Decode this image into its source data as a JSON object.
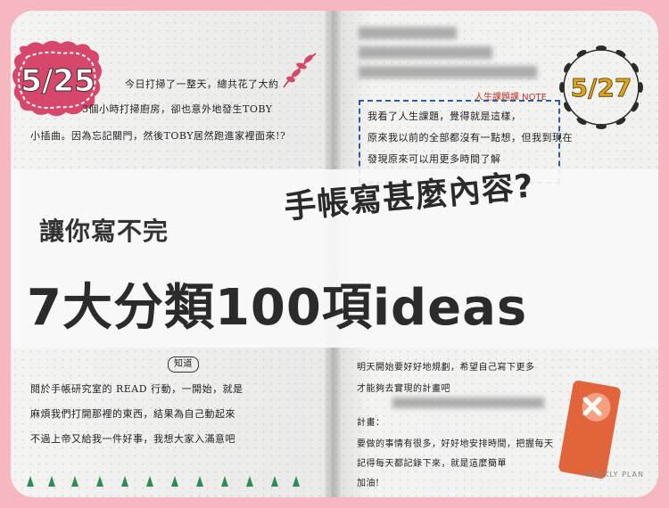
{
  "banner": {
    "line_top": "手帳寫甚麼內容?",
    "line_middle": "讓你寫不完",
    "line_bottom": "7大分類100項ideas"
  },
  "journal": {
    "date_left": "5/25",
    "date_right": "5/27",
    "note_label": "人生課題課 NOTE",
    "section_label": "知道",
    "bookmark_label": "WEEKLY PLAN",
    "left_lines": [
      "今日打掃了一整天，總共花了大約",
      "3個小時打掃廚房，卻也意外地發生TOBY",
      "小插曲。因為忘記關門，然後TOBY居然跑進家裡面來!?"
    ],
    "left_lower_lines": [
      "閱於手帳研究室的 READ 行動，一開始，就是",
      "麻煩我們打開那裡的東西，結果為自己動起來",
      "不過上帝又給我一件好事，我想大家入滿意吧"
    ],
    "right_lines": [
      "我看了人生課題，覺得就是這樣，",
      "原來我以前的全部都沒有一點想，但我到現在",
      "發現原來可以用更多時間了解"
    ],
    "right_lower_lines": [
      "明天開始要好好地規劃，希望自己寫下更多",
      "才能夠去實現的計畫吧",
      "計畫：",
      "要做的事情有很多，好好地安排時間，把握每天",
      "記得每天都記錄下來，就是這麼簡單",
      "加油!"
    ],
    "colors": {
      "frame": "#f6b7c0",
      "date_badge_left": "#d7466b",
      "wreath": "#2b2b2b",
      "date_right_text": "#d9a321",
      "dashed_box": "#2f5aa8",
      "bookmark": "#e2643b"
    }
  }
}
